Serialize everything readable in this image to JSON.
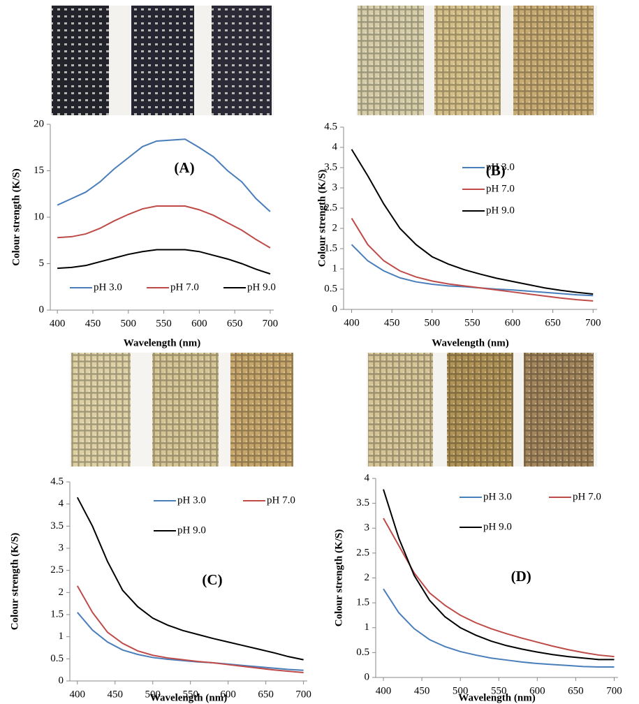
{
  "chart_data": [
    {
      "type": "line",
      "annotation": "(A)",
      "xlabel": "Wavelength (nm)",
      "ylabel": "Colour strength (K/S)",
      "x": [
        400,
        420,
        440,
        460,
        480,
        500,
        520,
        540,
        560,
        580,
        600,
        620,
        640,
        660,
        680,
        700
      ],
      "xlim": [
        390,
        705
      ],
      "xticks": [
        400,
        450,
        500,
        550,
        600,
        650,
        700
      ],
      "ylim": [
        0,
        20
      ],
      "yticks": [
        0,
        5,
        10,
        15,
        20
      ],
      "legend": "lower center",
      "series": [
        {
          "name": "pH 3.0",
          "color": "#4a7ebb",
          "values": [
            11.3,
            12.0,
            12.7,
            13.8,
            15.2,
            16.4,
            17.6,
            18.2,
            18.3,
            18.4,
            17.5,
            16.5,
            15.0,
            13.8,
            12.0,
            10.6
          ]
        },
        {
          "name": "pH 7.0",
          "color": "#be4b48",
          "values": [
            7.8,
            7.9,
            8.2,
            8.8,
            9.6,
            10.3,
            10.9,
            11.2,
            11.2,
            11.2,
            10.8,
            10.2,
            9.4,
            8.6,
            7.6,
            6.7
          ]
        },
        {
          "name": "pH 9.0",
          "color": "#000000",
          "values": [
            4.5,
            4.6,
            4.8,
            5.2,
            5.6,
            6.0,
            6.3,
            6.5,
            6.5,
            6.5,
            6.3,
            5.9,
            5.5,
            5.0,
            4.4,
            3.9
          ]
        }
      ]
    },
    {
      "type": "line",
      "annotation": "(B)",
      "xlabel": "Wavelength (nm)",
      "ylabel": "Colour strength (K/S)",
      "x": [
        400,
        420,
        440,
        460,
        480,
        500,
        520,
        540,
        560,
        580,
        600,
        620,
        640,
        660,
        680,
        700
      ],
      "xlim": [
        390,
        705
      ],
      "xticks": [
        400,
        450,
        500,
        550,
        600,
        650,
        700
      ],
      "ylim": [
        0,
        4.5
      ],
      "yticks": [
        0,
        0.5,
        1,
        1.5,
        2,
        2.5,
        3,
        3.5,
        4,
        4.5
      ],
      "legend": "upper center",
      "series": [
        {
          "name": "pH 3.0",
          "color": "#4a7ebb",
          "values": [
            1.6,
            1.2,
            0.95,
            0.78,
            0.68,
            0.62,
            0.58,
            0.56,
            0.53,
            0.5,
            0.48,
            0.45,
            0.42,
            0.39,
            0.36,
            0.34
          ]
        },
        {
          "name": "pH 7.0",
          "color": "#be4b48",
          "values": [
            2.25,
            1.6,
            1.2,
            0.95,
            0.8,
            0.7,
            0.63,
            0.58,
            0.53,
            0.48,
            0.43,
            0.38,
            0.33,
            0.28,
            0.24,
            0.21
          ]
        },
        {
          "name": "pH 9.0",
          "color": "#000000",
          "values": [
            3.95,
            3.3,
            2.6,
            2.0,
            1.6,
            1.3,
            1.12,
            0.98,
            0.87,
            0.77,
            0.69,
            0.61,
            0.53,
            0.47,
            0.42,
            0.38
          ]
        }
      ]
    },
    {
      "type": "line",
      "annotation": "(C)",
      "xlabel": "Wavelength (nm)",
      "ylabel": "Colour strength (K/S)",
      "x": [
        400,
        420,
        440,
        460,
        480,
        500,
        520,
        540,
        560,
        580,
        600,
        620,
        640,
        660,
        680,
        700
      ],
      "xlim": [
        390,
        705
      ],
      "xticks": [
        400,
        450,
        500,
        550,
        600,
        650,
        700
      ],
      "ylim": [
        0,
        4.5
      ],
      "yticks": [
        0,
        0.5,
        1,
        1.5,
        2,
        2.5,
        3,
        3.5,
        4,
        4.5
      ],
      "legend": "upper right",
      "series": [
        {
          "name": "pH 3.0",
          "color": "#4a7ebb",
          "values": [
            1.55,
            1.15,
            0.88,
            0.7,
            0.6,
            0.53,
            0.49,
            0.46,
            0.43,
            0.41,
            0.38,
            0.35,
            0.32,
            0.29,
            0.26,
            0.24
          ]
        },
        {
          "name": "pH 7.0",
          "color": "#be4b48",
          "values": [
            2.15,
            1.55,
            1.1,
            0.85,
            0.68,
            0.58,
            0.52,
            0.48,
            0.44,
            0.41,
            0.37,
            0.33,
            0.29,
            0.25,
            0.22,
            0.19
          ]
        },
        {
          "name": "pH 9.0",
          "color": "#000000",
          "values": [
            4.15,
            3.5,
            2.7,
            2.05,
            1.68,
            1.42,
            1.26,
            1.14,
            1.05,
            0.96,
            0.88,
            0.8,
            0.72,
            0.64,
            0.55,
            0.48
          ]
        }
      ]
    },
    {
      "type": "line",
      "annotation": "(D)",
      "xlabel": "Wavelength (nm)",
      "ylabel": "Colour strength (K/S)",
      "x": [
        400,
        420,
        440,
        460,
        480,
        500,
        520,
        540,
        560,
        580,
        600,
        620,
        640,
        660,
        680,
        700
      ],
      "xlim": [
        390,
        705
      ],
      "xticks": [
        400,
        450,
        500,
        550,
        600,
        650,
        700
      ],
      "ylim": [
        0,
        4
      ],
      "yticks": [
        0,
        0.5,
        1,
        1.5,
        2,
        2.5,
        3,
        3.5,
        4
      ],
      "legend": "upper right",
      "series": [
        {
          "name": "pH 3.0",
          "color": "#4a7ebb",
          "values": [
            1.78,
            1.3,
            0.98,
            0.76,
            0.62,
            0.52,
            0.45,
            0.39,
            0.35,
            0.31,
            0.28,
            0.26,
            0.24,
            0.22,
            0.21,
            0.21
          ]
        },
        {
          "name": "pH 7.0",
          "color": "#be4b48",
          "values": [
            3.2,
            2.65,
            2.1,
            1.7,
            1.45,
            1.25,
            1.1,
            0.98,
            0.88,
            0.79,
            0.71,
            0.63,
            0.56,
            0.5,
            0.45,
            0.42
          ]
        },
        {
          "name": "pH 9.0",
          "color": "#000000",
          "values": [
            3.78,
            2.8,
            2.05,
            1.55,
            1.22,
            1.0,
            0.85,
            0.73,
            0.64,
            0.57,
            0.51,
            0.46,
            0.42,
            0.39,
            0.36,
            0.36
          ]
        }
      ]
    }
  ]
}
